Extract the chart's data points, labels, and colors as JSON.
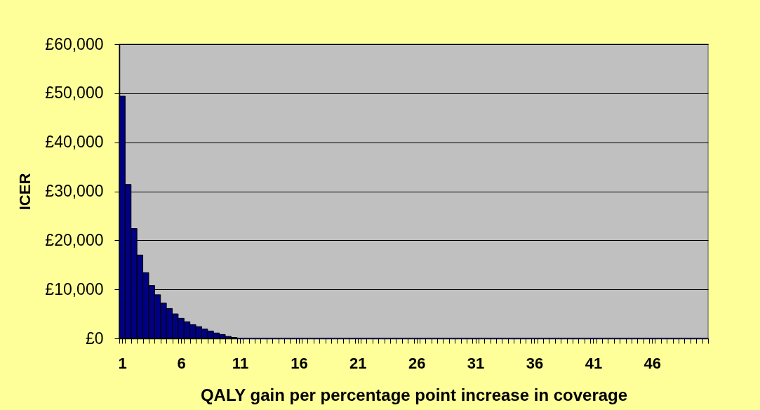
{
  "chart_data": {
    "type": "bar",
    "xlabel": "QALY gain per percentage point increase in coverage",
    "ylabel": "ICER",
    "x": [
      1,
      1.5,
      2,
      2.5,
      3,
      3.5,
      4,
      4.5,
      5,
      5.5,
      6,
      6.5,
      7,
      7.5,
      8,
      8.5,
      9,
      9.5,
      10,
      10.5,
      11,
      11.5,
      12,
      12.5,
      13,
      13.5,
      14,
      14.5,
      15,
      15.5,
      16,
      16.5,
      17,
      17.5,
      18,
      18.5,
      19,
      19.5,
      20,
      20.5,
      21,
      21.5,
      22,
      22.5,
      23,
      23.5,
      24,
      24.5,
      25,
      25.5,
      26,
      26.5,
      27,
      27.5,
      28,
      28.5,
      29,
      29.5,
      30,
      30.5,
      31,
      31.5,
      32,
      32.5,
      33,
      33.5,
      34,
      34.5,
      35,
      35.5,
      36,
      36.5,
      37,
      37.5,
      38,
      38.5,
      39,
      39.5,
      40,
      40.5,
      41,
      41.5,
      42,
      42.5,
      43,
      43.5,
      44,
      44.5,
      45,
      45.5,
      46,
      46.5,
      47,
      47.5,
      48,
      48.5,
      49,
      49.5,
      50,
      50.5
    ],
    "values": [
      49400,
      31400,
      22400,
      17000,
      13400,
      10800,
      8900,
      7200,
      6100,
      5000,
      4100,
      3400,
      2800,
      2400,
      1900,
      1500,
      1100,
      800,
      400,
      200,
      0,
      0,
      0,
      0,
      0,
      0,
      0,
      0,
      0,
      0,
      0,
      0,
      0,
      0,
      0,
      0,
      0,
      0,
      0,
      0,
      0,
      0,
      0,
      0,
      0,
      0,
      0,
      0,
      0,
      0,
      0,
      0,
      0,
      0,
      0,
      0,
      0,
      0,
      0,
      0,
      0,
      0,
      0,
      0,
      0,
      0,
      0,
      0,
      0,
      0,
      0,
      0,
      0,
      0,
      0,
      0,
      0,
      0,
      0,
      0,
      0,
      0,
      0,
      0,
      0,
      0,
      0,
      0,
      0,
      0,
      0,
      0,
      0,
      0,
      0,
      0,
      0,
      0,
      0,
      0
    ],
    "color": "#000080",
    "xlim": [
      0.75,
      50.75
    ],
    "xticks": [
      1,
      6,
      11,
      16,
      21,
      26,
      31,
      36,
      41,
      46,
      {
        "value": 0.75,
        "label": null
      },
      {
        "value": 1.25,
        "label": null
      },
      {
        "value": 1.75,
        "label": null
      },
      {
        "value": 2.25,
        "label": null
      },
      {
        "value": 2.75,
        "label": null
      },
      {
        "value": 3.25,
        "label": null
      },
      {
        "value": 3.75,
        "label": null
      },
      {
        "value": 4.25,
        "label": null
      },
      {
        "value": 4.75,
        "label": null
      },
      {
        "value": 5.25,
        "label": null
      },
      {
        "value": 5.75,
        "label": null
      },
      {
        "value": 6.25,
        "label": null
      },
      {
        "value": 6.75,
        "label": null
      },
      {
        "value": 7.25,
        "label": null
      },
      {
        "value": 7.75,
        "label": null
      },
      {
        "value": 8.25,
        "label": null
      },
      {
        "value": 8.75,
        "label": null
      },
      {
        "value": 9.25,
        "label": null
      },
      {
        "value": 9.75,
        "label": null
      },
      {
        "value": 10.25,
        "label": null
      },
      {
        "value": 10.75,
        "label": null
      },
      {
        "value": 11.25,
        "label": null
      },
      {
        "value": 11.75,
        "label": null
      },
      {
        "value": 12.25,
        "label": null
      },
      {
        "value": 12.75,
        "label": null
      },
      {
        "value": 13.25,
        "label": null
      },
      {
        "value": 13.75,
        "label": null
      },
      {
        "value": 14.25,
        "label": null
      },
      {
        "value": 14.75,
        "label": null
      },
      {
        "value": 15.25,
        "label": null
      },
      {
        "value": 15.75,
        "label": null
      },
      {
        "value": 16.25,
        "label": null
      },
      {
        "value": 16.75,
        "label": null
      },
      {
        "value": 17.25,
        "label": null
      },
      {
        "value": 17.75,
        "label": null
      },
      {
        "value": 18.25,
        "label": null
      },
      {
        "value": 18.75,
        "label": null
      },
      {
        "value": 19.25,
        "label": null
      },
      {
        "value": 19.75,
        "label": null
      },
      {
        "value": 20.25,
        "label": null
      },
      {
        "value": 20.75,
        "label": null
      },
      {
        "value": 21.25,
        "label": null
      },
      {
        "value": 21.75,
        "label": null
      },
      {
        "value": 22.25,
        "label": null
      },
      {
        "value": 22.75,
        "label": null
      },
      {
        "value": 23.25,
        "label": null
      },
      {
        "value": 23.75,
        "label": null
      },
      {
        "value": 24.25,
        "label": null
      },
      {
        "value": 24.75,
        "label": null
      },
      {
        "value": 25.25,
        "label": null
      },
      {
        "value": 25.75,
        "label": null
      },
      {
        "value": 26.25,
        "label": null
      },
      {
        "value": 26.75,
        "label": null
      },
      {
        "value": 27.25,
        "label": null
      },
      {
        "value": 27.75,
        "label": null
      },
      {
        "value": 28.25,
        "label": null
      },
      {
        "value": 28.75,
        "label": null
      },
      {
        "value": 29.25,
        "label": null
      },
      {
        "value": 29.75,
        "label": null
      },
      {
        "value": 30.25,
        "label": null
      },
      {
        "value": 30.75,
        "label": null
      },
      {
        "value": 31.25,
        "label": null
      },
      {
        "value": 31.75,
        "label": null
      },
      {
        "value": 32.25,
        "label": null
      },
      {
        "value": 32.75,
        "label": null
      },
      {
        "value": 33.25,
        "label": null
      },
      {
        "value": 33.75,
        "label": null
      },
      {
        "value": 34.25,
        "label": null
      },
      {
        "value": 34.75,
        "label": null
      },
      {
        "value": 35.25,
        "label": null
      },
      {
        "value": 35.75,
        "label": null
      },
      {
        "value": 36.25,
        "label": null
      },
      {
        "value": 36.75,
        "label": null
      },
      {
        "value": 37.25,
        "label": null
      },
      {
        "value": 37.75,
        "label": null
      },
      {
        "value": 38.25,
        "label": null
      },
      {
        "value": 38.75,
        "label": null
      },
      {
        "value": 39.25,
        "label": null
      },
      {
        "value": 39.75,
        "label": null
      },
      {
        "value": 40.25,
        "label": null
      },
      {
        "value": 40.75,
        "label": null
      },
      {
        "value": 41.25,
        "label": null
      },
      {
        "value": 41.75,
        "label": null
      },
      {
        "value": 42.25,
        "label": null
      },
      {
        "value": 42.75,
        "label": null
      },
      {
        "value": 43.25,
        "label": null
      },
      {
        "value": 43.75,
        "label": null
      },
      {
        "value": 44.25,
        "label": null
      },
      {
        "value": 44.75,
        "label": null
      },
      {
        "value": 45.25,
        "label": null
      },
      {
        "value": 45.75,
        "label": null
      },
      {
        "value": 46.25,
        "label": null
      },
      {
        "value": 46.75,
        "label": null
      },
      {
        "value": 47.25,
        "label": null
      },
      {
        "value": 47.75,
        "label": null
      },
      {
        "value": 48.25,
        "label": null
      },
      {
        "value": 48.75,
        "label": null
      },
      {
        "value": 49.25,
        "label": null
      },
      {
        "value": 49.75,
        "label": null
      },
      {
        "value": 50.25,
        "label": null
      },
      {
        "value": 50.75,
        "label": null
      }
    ],
    "ylim": [
      0,
      60000
    ],
    "yticks": [
      {
        "value": 0,
        "label": "£0"
      },
      {
        "value": 10000,
        "label": "£10,000"
      },
      {
        "value": 20000,
        "label": "£20,000"
      },
      {
        "value": 30000,
        "label": "£30,000"
      },
      {
        "value": 40000,
        "label": "£40,000"
      },
      {
        "value": 50000,
        "label": "£50,000"
      },
      {
        "value": 60000,
        "label": "£60,000"
      }
    ],
    "grid": "y"
  }
}
